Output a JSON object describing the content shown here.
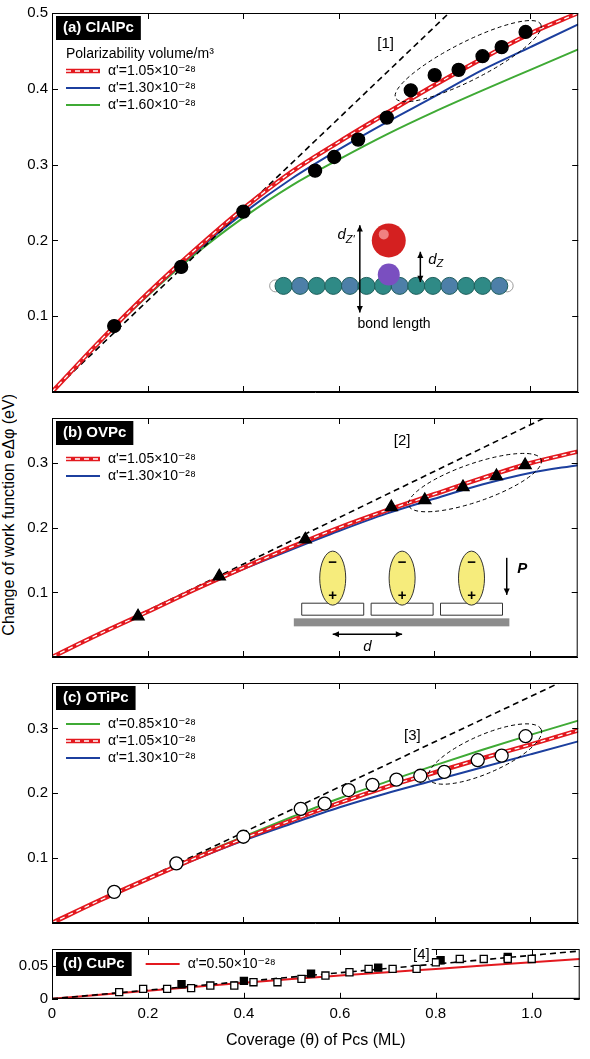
{
  "y_label": "Change of work function eΔφ (eV)",
  "chart_data": [
    {
      "type": "scatter",
      "title": "(a) ClAlPc",
      "legend": "upper left",
      "legend_title": "Polarizability volume/m³",
      "xlim": [
        0,
        1.1
      ],
      "xticks": [
        0,
        0.2,
        0.4,
        0.6,
        0.8,
        1
      ],
      "ylim": [
        0,
        0.5
      ],
      "yticks": [
        0.1,
        0.2,
        0.3,
        0.4,
        0.5
      ],
      "tick_labels": "y",
      "grid": false,
      "annotations": [
        "[1]"
      ],
      "inset_labels": [
        "dZ'",
        "dZ",
        "bond length"
      ],
      "series": [
        {
          "type": "line",
          "color": "#000000",
          "line_style": "dashed",
          "x": [
            0,
            0.83
          ],
          "values": [
            0,
            0.5
          ]
        },
        {
          "type": "line",
          "name": "α'=1.05×10⁻²⁸",
          "color": "#e3191f",
          "line_style": "striped",
          "x": [
            0,
            0.1,
            0.2,
            0.3,
            0.4,
            0.5,
            0.6,
            0.7,
            0.8,
            0.9,
            1.0,
            1.1
          ],
          "values": [
            0,
            0.067,
            0.13,
            0.188,
            0.242,
            0.29,
            0.33,
            0.368,
            0.405,
            0.44,
            0.473,
            0.5
          ]
        },
        {
          "type": "line",
          "name": "α'=1.30×10⁻²⁸",
          "color": "#1c3f9e",
          "line_style": "solid",
          "x": [
            0,
            0.1,
            0.2,
            0.3,
            0.4,
            0.5,
            0.6,
            0.7,
            0.8,
            0.9,
            1.0,
            1.1
          ],
          "values": [
            0,
            0.066,
            0.128,
            0.185,
            0.236,
            0.281,
            0.32,
            0.356,
            0.39,
            0.425,
            0.455,
            0.485
          ]
        },
        {
          "type": "line",
          "name": "α'=1.60×10⁻²⁸",
          "color": "#3faa35",
          "line_style": "solid",
          "x": [
            0,
            0.1,
            0.2,
            0.3,
            0.4,
            0.5,
            0.6,
            0.7,
            0.8,
            0.9,
            1.0,
            1.1
          ],
          "values": [
            0,
            0.066,
            0.127,
            0.182,
            0.23,
            0.272,
            0.307,
            0.34,
            0.37,
            0.398,
            0.425,
            0.452
          ]
        },
        {
          "type": "scatter",
          "color": "#000000",
          "marker": "circle",
          "x": [
            0.13,
            0.27,
            0.4,
            0.55,
            0.59,
            0.64,
            0.7,
            0.75,
            0.8,
            0.85,
            0.9,
            0.94,
            0.99
          ],
          "values": [
            0.087,
            0.165,
            0.238,
            0.292,
            0.31,
            0.333,
            0.362,
            0.398,
            0.418,
            0.425,
            0.443,
            0.455,
            0.475
          ]
        }
      ]
    },
    {
      "type": "scatter",
      "title": "(b) OVPc",
      "legend": "upper left",
      "xlim": [
        0,
        1.1
      ],
      "xticks": [
        0,
        0.2,
        0.4,
        0.6,
        0.8,
        1
      ],
      "ylim": [
        0,
        0.37
      ],
      "yticks": [
        0.1,
        0.2,
        0.3
      ],
      "tick_labels": "y",
      "grid": false,
      "annotations": [
        "[2]"
      ],
      "inset_labels": [
        "P",
        "d",
        "−",
        "+"
      ],
      "series": [
        {
          "type": "line",
          "color": "#000000",
          "line_style": "dashed",
          "x": [
            0,
            1.03
          ],
          "values": [
            0,
            0.37
          ]
        },
        {
          "type": "line",
          "name": "α'=1.05×10⁻²⁸",
          "color": "#e3191f",
          "line_style": "striped",
          "x": [
            0,
            0.1,
            0.2,
            0.3,
            0.4,
            0.5,
            0.6,
            0.7,
            0.8,
            0.9,
            1.0,
            1.1
          ],
          "values": [
            0,
            0.036,
            0.07,
            0.105,
            0.138,
            0.17,
            0.2,
            0.227,
            0.252,
            0.277,
            0.3,
            0.318
          ]
        },
        {
          "type": "line",
          "name": "α'=1.30×10⁻²⁸",
          "color": "#1c3f9e",
          "line_style": "solid",
          "x": [
            0,
            0.1,
            0.2,
            0.3,
            0.4,
            0.5,
            0.6,
            0.7,
            0.8,
            0.9,
            1.0,
            1.1
          ],
          "values": [
            0,
            0.036,
            0.07,
            0.104,
            0.136,
            0.166,
            0.195,
            0.222,
            0.245,
            0.267,
            0.285,
            0.297
          ]
        },
        {
          "type": "scatter",
          "color": "#000000",
          "marker": "triangle",
          "x": [
            0.18,
            0.35,
            0.53,
            0.71,
            0.78,
            0.86,
            0.93,
            0.99
          ],
          "values": [
            0.063,
            0.125,
            0.182,
            0.232,
            0.243,
            0.263,
            0.28,
            0.297
          ]
        }
      ]
    },
    {
      "type": "scatter",
      "title": "(c) OTiPc",
      "legend": "upper left",
      "xlim": [
        0,
        1.1
      ],
      "xticks": [
        0,
        0.2,
        0.4,
        0.6,
        0.8,
        1
      ],
      "ylim": [
        0,
        0.37
      ],
      "yticks": [
        0.1,
        0.2,
        0.3
      ],
      "tick_labels": "y",
      "grid": false,
      "annotations": [
        "[3]"
      ],
      "series": [
        {
          "type": "line",
          "color": "#000000",
          "line_style": "dashed",
          "x": [
            0,
            1.06
          ],
          "values": [
            0,
            0.37
          ]
        },
        {
          "type": "line",
          "name": "α'=0.85×10⁻²⁸",
          "color": "#3faa35",
          "line_style": "solid",
          "x": [
            0,
            0.1,
            0.2,
            0.3,
            0.4,
            0.5,
            0.6,
            0.7,
            0.8,
            0.9,
            1.0,
            1.1
          ],
          "values": [
            0,
            0.035,
            0.069,
            0.102,
            0.133,
            0.163,
            0.192,
            0.218,
            0.243,
            0.267,
            0.29,
            0.312
          ]
        },
        {
          "type": "line",
          "name": "α'=1.05×10⁻²⁸",
          "color": "#e3191f",
          "line_style": "striped",
          "x": [
            0,
            0.1,
            0.2,
            0.3,
            0.4,
            0.5,
            0.6,
            0.7,
            0.8,
            0.9,
            1.0,
            1.1
          ],
          "values": [
            0,
            0.035,
            0.068,
            0.1,
            0.13,
            0.158,
            0.185,
            0.21,
            0.232,
            0.254,
            0.275,
            0.297
          ]
        },
        {
          "type": "line",
          "name": "α'=1.30×10⁻²⁸",
          "color": "#1c3f9e",
          "line_style": "solid",
          "x": [
            0,
            0.1,
            0.2,
            0.3,
            0.4,
            0.5,
            0.6,
            0.7,
            0.8,
            0.9,
            1.0,
            1.1
          ],
          "values": [
            0,
            0.035,
            0.067,
            0.098,
            0.127,
            0.153,
            0.178,
            0.2,
            0.22,
            0.24,
            0.26,
            0.28
          ]
        },
        {
          "type": "scatter",
          "color": "#000000",
          "marker": "circle-open",
          "x": [
            0.13,
            0.26,
            0.4,
            0.52,
            0.57,
            0.62,
            0.67,
            0.72,
            0.77,
            0.82,
            0.89,
            0.94,
            0.99
          ],
          "values": [
            0.048,
            0.092,
            0.133,
            0.176,
            0.184,
            0.205,
            0.213,
            0.221,
            0.227,
            0.233,
            0.251,
            0.258,
            0.288
          ]
        }
      ]
    },
    {
      "type": "scatter",
      "title": "(d) CuPc",
      "legend": "upper left",
      "x_label": "Coverage (θ) of Pcs (ML)",
      "xlim": [
        0,
        1.1
      ],
      "xticks": [
        0,
        0.2,
        0.4,
        0.6,
        0.8,
        {
          "value": 1,
          "label": "1.0"
        }
      ],
      "ylim": [
        0,
        0.075
      ],
      "yticks": [
        0,
        0.05
      ],
      "tick_labels": true,
      "grid": false,
      "annotations": [
        "[4]"
      ],
      "series": [
        {
          "type": "line",
          "color": "#000000",
          "line_style": "dashed",
          "x": [
            0,
            1.1
          ],
          "values": [
            0,
            0.072
          ]
        },
        {
          "type": "line",
          "name": "α'=0.50×10⁻²⁸",
          "color": "#e3191f",
          "line_style": "solid",
          "x": [
            0,
            0.1,
            0.2,
            0.3,
            0.4,
            0.5,
            0.6,
            0.7,
            0.8,
            0.9,
            1.0,
            1.1
          ],
          "values": [
            0,
            0.006,
            0.012,
            0.018,
            0.024,
            0.03,
            0.035,
            0.04,
            0.045,
            0.05,
            0.055,
            0.06
          ]
        },
        {
          "type": "scatter",
          "color": "#000000",
          "marker": "square-open",
          "x": [
            0.14,
            0.19,
            0.24,
            0.29,
            0.33,
            0.38,
            0.42,
            0.47,
            0.52,
            0.57,
            0.62,
            0.66,
            0.71,
            0.76,
            0.8,
            0.85,
            0.9,
            0.95,
            1.0
          ],
          "values": [
            0.01,
            0.015,
            0.015,
            0.016,
            0.02,
            0.02,
            0.025,
            0.025,
            0.03,
            0.035,
            0.04,
            0.045,
            0.045,
            0.045,
            0.055,
            0.06,
            0.06,
            0.06,
            0.06
          ]
        },
        {
          "type": "scatter",
          "color": "#000000",
          "marker": "square",
          "x": [
            0.27,
            0.4,
            0.54,
            0.68,
            0.81,
            0.95
          ],
          "values": [
            0.022,
            0.027,
            0.038,
            0.047,
            0.058,
            0.063
          ]
        }
      ]
    }
  ]
}
